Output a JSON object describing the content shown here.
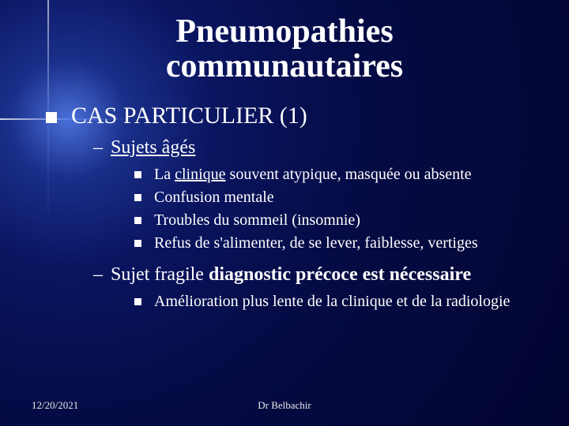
{
  "title_line1": "Pneumopathies",
  "title_line2": "communautaires",
  "heading": "CAS PARTICULIER (1)",
  "sub1_label": "Sujets âgés",
  "sub1_items": {
    "a_prefix": "La ",
    "a_under": "clinique",
    "a_rest": " souvent atypique, masquée ou absente",
    "b": "Confusion mentale",
    "c": "Troubles du sommeil (insomnie)",
    "d": "Refus de s'alimenter, de se lever, faiblesse, vertiges"
  },
  "sub2_label": "Sujet fragile",
  "sub2_bold": "  diagnostic précoce est nécessaire",
  "sub2_items": {
    "a": "Amélioration plus lente de la clinique et de la radiologie"
  },
  "footer_date": "12/20/2021",
  "footer_author": "Dr Belbachir"
}
